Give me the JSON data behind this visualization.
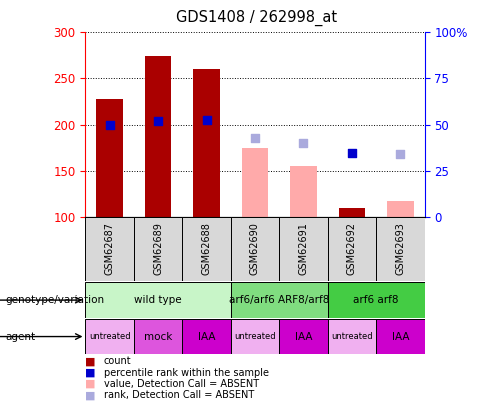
{
  "title": "GDS1408 / 262998_at",
  "samples": [
    "GSM62687",
    "GSM62689",
    "GSM62688",
    "GSM62690",
    "GSM62691",
    "GSM62692",
    "GSM62693"
  ],
  "count_values": [
    228,
    274,
    260,
    null,
    null,
    109,
    null
  ],
  "count_absent_values": [
    null,
    null,
    null,
    175,
    155,
    null,
    117
  ],
  "percentile_values": [
    199,
    204,
    205,
    null,
    null,
    169,
    null
  ],
  "percentile_absent_values": [
    null,
    null,
    null,
    185,
    180,
    null,
    168
  ],
  "ylim_left": [
    100,
    300
  ],
  "ylim_right": [
    0,
    100
  ],
  "yticks_left": [
    100,
    150,
    200,
    250,
    300
  ],
  "yticks_right": [
    0,
    25,
    50,
    75,
    100
  ],
  "ytick_labels_right": [
    "0",
    "25",
    "50",
    "75",
    "100%"
  ],
  "genotype_groups": [
    {
      "label": "wild type",
      "start": 0,
      "end": 3,
      "color": "#c8f5c8"
    },
    {
      "label": "arf6/arf6 ARF8/arf8",
      "start": 3,
      "end": 5,
      "color": "#80dd80"
    },
    {
      "label": "arf6 arf8",
      "start": 5,
      "end": 7,
      "color": "#44cc44"
    }
  ],
  "agent_labels": [
    "untreated",
    "mock",
    "IAA",
    "untreated",
    "IAA",
    "untreated",
    "IAA"
  ],
  "agent_colors": [
    "#f0b0f0",
    "#dd55dd",
    "#cc00cc",
    "#f0b0f0",
    "#cc00cc",
    "#f0b0f0",
    "#cc00cc"
  ],
  "bar_color_present": "#aa0000",
  "bar_color_absent": "#ffaaaa",
  "dot_color_present": "#0000cc",
  "dot_color_absent": "#aaaadd",
  "baseline": 100,
  "bar_width": 0.55,
  "dot_size": 40
}
